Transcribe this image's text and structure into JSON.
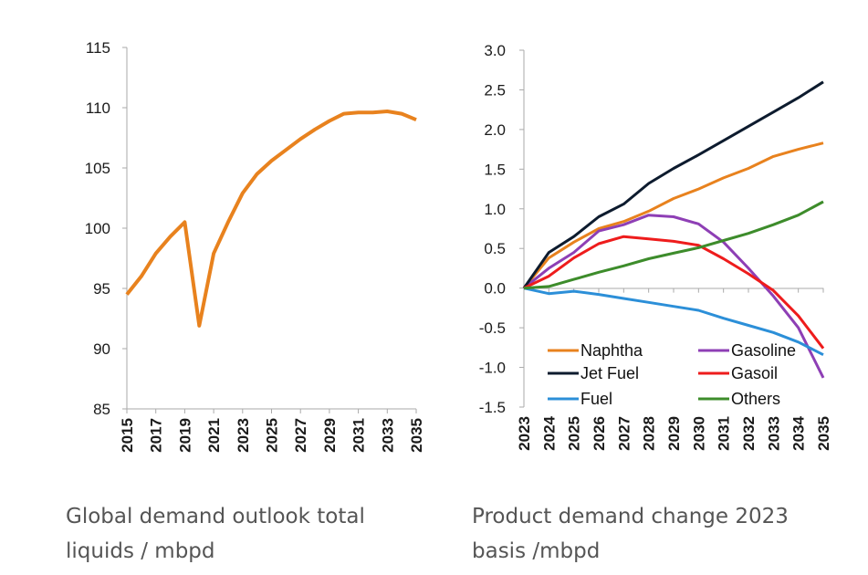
{
  "captions": {
    "left": [
      "Global demand outlook total",
      "liquids / mbpd"
    ],
    "right": [
      "Product demand change 2023",
      "basis /mbpd"
    ]
  },
  "chart_data": [
    {
      "type": "line",
      "title": "",
      "xlabel": "",
      "ylabel": "",
      "ylim": [
        85,
        115
      ],
      "yticks": [
        "85",
        "90",
        "95",
        "100",
        "105",
        "110",
        "115"
      ],
      "xlim": [
        2015,
        2035
      ],
      "xticks": [
        "2015",
        "2017",
        "2019",
        "2021",
        "2023",
        "2025",
        "2027",
        "2029",
        "2031",
        "2033",
        "2035"
      ],
      "grid": false,
      "series": [
        {
          "color": "#e8821e",
          "x": [
            2015,
            2016,
            2017,
            2018,
            2019,
            2020,
            2021,
            2022,
            2023,
            2024,
            2025,
            2026,
            2027,
            2028,
            2029,
            2030,
            2031,
            2032,
            2033,
            2034,
            2035
          ],
          "y": [
            94.5,
            96.0,
            97.9,
            99.3,
            100.5,
            91.9,
            97.9,
            100.5,
            102.9,
            104.5,
            105.6,
            106.5,
            107.4,
            108.2,
            108.9,
            109.5,
            109.6,
            109.6,
            109.7,
            109.5,
            109.0
          ]
        }
      ]
    },
    {
      "type": "line",
      "title": "",
      "xlabel": "",
      "ylabel": "",
      "ylim": [
        -1.5,
        3.0
      ],
      "yticks": [
        "-1.5",
        "-1.0",
        "-0.5",
        "0.0",
        "0.5",
        "1.0",
        "1.5",
        "2.0",
        "2.5",
        "3.0"
      ],
      "xlim": [
        2023,
        2035
      ],
      "xticks": [
        "2023",
        "2024",
        "2025",
        "2026",
        "2027",
        "2028",
        "2029",
        "2030",
        "2031",
        "2032",
        "2033",
        "2034",
        "2035"
      ],
      "grid": false,
      "legend": "bottom-inside",
      "x": [
        2023,
        2024,
        2025,
        2026,
        2027,
        2028,
        2029,
        2030,
        2031,
        2032,
        2033,
        2034,
        2035
      ],
      "series": [
        {
          "name": "Naphtha",
          "color": "#e8821e",
          "values": [
            0,
            0.38,
            0.58,
            0.75,
            0.84,
            0.97,
            1.13,
            1.25,
            1.39,
            1.51,
            1.66,
            1.75,
            1.83
          ]
        },
        {
          "name": "Gasoline",
          "color": "#8e3fb5",
          "values": [
            0,
            0.25,
            0.45,
            0.72,
            0.8,
            0.92,
            0.9,
            0.81,
            0.58,
            0.25,
            -0.1,
            -0.5,
            -1.13
          ]
        },
        {
          "name": "Jet Fuel",
          "color": "#0d1b2e",
          "values": [
            0,
            0.45,
            0.65,
            0.9,
            1.06,
            1.32,
            1.51,
            1.68,
            1.86,
            2.04,
            2.22,
            2.4,
            2.6
          ]
        },
        {
          "name": "Gasoil",
          "color": "#ee1c1c",
          "values": [
            0,
            0.15,
            0.38,
            0.56,
            0.65,
            0.62,
            0.59,
            0.54,
            0.37,
            0.18,
            -0.03,
            -0.35,
            -0.76
          ]
        },
        {
          "name": "Fuel",
          "color": "#2c8fd8",
          "values": [
            0,
            -0.07,
            -0.04,
            -0.08,
            -0.13,
            -0.18,
            -0.23,
            -0.28,
            -0.38,
            -0.47,
            -0.56,
            -0.68,
            -0.84
          ]
        },
        {
          "name": "Others",
          "color": "#3d8c2b",
          "values": [
            0,
            0.02,
            0.11,
            0.2,
            0.28,
            0.37,
            0.44,
            0.51,
            0.6,
            0.69,
            0.8,
            0.92,
            1.09
          ]
        }
      ]
    }
  ]
}
